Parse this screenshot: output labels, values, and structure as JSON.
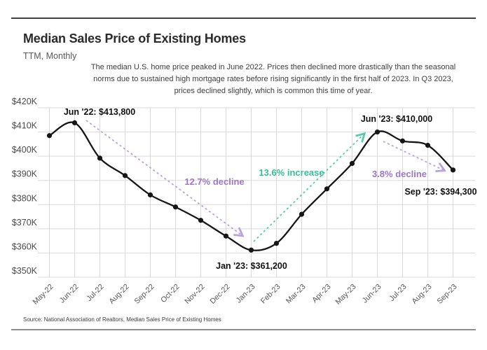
{
  "header": {
    "title": "Median Sales Price of Existing Homes",
    "subtitle": "TTM, Monthly"
  },
  "annotation": {
    "line1": "The median U.S. home price peaked in June 2022. Prices then declined more drastically than the seasonal",
    "line2": "norms due to sustained high mortgage rates before rising significantly in the first half of 2023. In Q3 2023,",
    "line3": "prices declined slightly, which is common this time of year."
  },
  "source": "Source:  National Association of Realtors, Median Sales Price of Existing Homes",
  "colors": {
    "line": "#161616",
    "grid": "#d9d9d9",
    "decline_text": "#9b76cc",
    "decline_arrow": "#b9a0e4",
    "increase_text": "#35bd97",
    "increase_arrow": "#55cdad"
  },
  "chart_data": {
    "type": "line",
    "title": "Median Sales Price of Existing Homes",
    "xlabel": "",
    "ylabel": "",
    "grid": true,
    "legend": false,
    "ylim": [
      350000,
      420000
    ],
    "y_tick_labels": [
      "$420K",
      "$410K",
      "$400K",
      "$390K",
      "$380K",
      "$370K",
      "$360K",
      "$350K"
    ],
    "y_tick_values": [
      420000,
      410000,
      400000,
      390000,
      380000,
      370000,
      360000,
      350000
    ],
    "categories": [
      "May-22",
      "Jun-22",
      "Jul-22",
      "Aug-22",
      "Sep-22",
      "Oct-22",
      "Nov-22",
      "Dec-22",
      "Jan-23",
      "Feb-23",
      "Mar-23",
      "Apr-23",
      "May-23",
      "Jun-23",
      "Jul-23",
      "Aug-23",
      "Sep-23"
    ],
    "values": [
      408500,
      413800,
      399200,
      392000,
      384000,
      379000,
      373500,
      367000,
      361200,
      364000,
      376000,
      386500,
      397000,
      410000,
      406300,
      404500,
      394300
    ],
    "point_labels": [
      {
        "text": "Jun '22: $413,800",
        "month": "Jun-22",
        "value": 413800
      },
      {
        "text": "Jan '23: $361,200",
        "month": "Jan-23",
        "value": 361200
      },
      {
        "text": "Jun '23: $410,000",
        "month": "Jun-23",
        "value": 410000
      },
      {
        "text": "Sep '23: $394,300",
        "month": "Sep-23",
        "value": 394300
      }
    ],
    "trend_annotations": [
      {
        "text": "12.7% decline",
        "direction": "down",
        "from": "Jun-22",
        "to": "Jan-23"
      },
      {
        "text": "13.6% increase",
        "direction": "up",
        "from": "Jan-23",
        "to": "Jun-23"
      },
      {
        "text": "3.8% decline",
        "direction": "down",
        "from": "Jun-23",
        "to": "Sep-23"
      }
    ]
  }
}
